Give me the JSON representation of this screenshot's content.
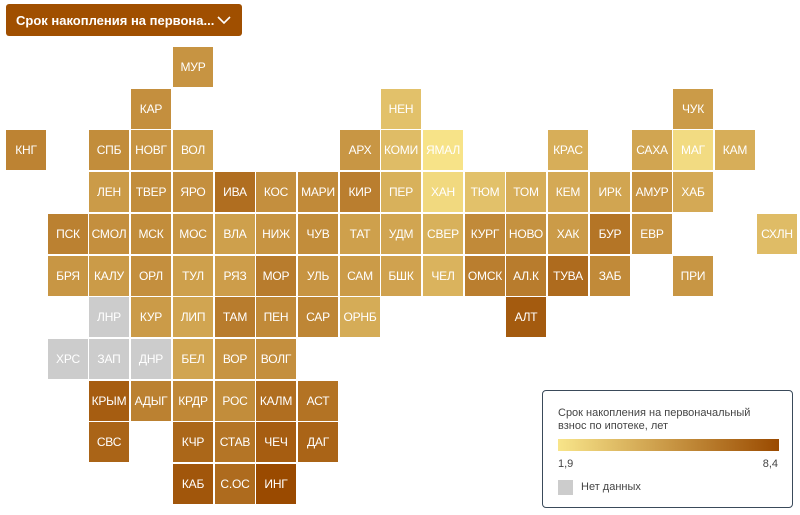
{
  "dropdown": {
    "label": "Срок накопления на первона..."
  },
  "legend": {
    "title": "Срок накопления на первоначальный взнос по ипотеке, лет",
    "min_label": "1,9",
    "max_label": "8,4",
    "no_data_label": "Нет данных",
    "color_low": "#f8e58a",
    "color_high": "#9a4a00",
    "color_no_data": "#cccccc"
  },
  "chart_data": {
    "type": "heatmap",
    "title": "Срок накопления на первоначальный взнос по ипотеке, лет",
    "value_range": [
      1.9,
      8.4
    ],
    "regions": [
      {
        "label": "МУР",
        "col": 4,
        "row": 0,
        "value": 5.3
      },
      {
        "label": "КАР",
        "col": 3,
        "row": 1,
        "value": 5.5
      },
      {
        "label": "НЕН",
        "col": 9,
        "row": 1,
        "value": 3.4
      },
      {
        "label": "ЧУК",
        "col": 16,
        "row": 1,
        "value": 5.0
      },
      {
        "label": "КНГ",
        "col": 0,
        "row": 2,
        "value": 6.0
      },
      {
        "label": "СПБ",
        "col": 2,
        "row": 2,
        "value": 5.6
      },
      {
        "label": "НОВГ",
        "col": 3,
        "row": 2,
        "value": 5.3
      },
      {
        "label": "ВОЛ",
        "col": 4,
        "row": 2,
        "value": 4.8
      },
      {
        "label": "АРХ",
        "col": 8,
        "row": 2,
        "value": 5.2
      },
      {
        "label": "КОМИ",
        "col": 9,
        "row": 2,
        "value": 3.6
      },
      {
        "label": "ЯМАЛ",
        "col": 10,
        "row": 2,
        "value": 2.0
      },
      {
        "label": "КРАС",
        "col": 13,
        "row": 2,
        "value": 4.2
      },
      {
        "label": "САХА",
        "col": 15,
        "row": 2,
        "value": 4.6
      },
      {
        "label": "МАГ",
        "col": 16,
        "row": 2,
        "value": 2.3
      },
      {
        "label": "КАМ",
        "col": 17,
        "row": 2,
        "value": 4.2
      },
      {
        "label": "ЛЕН",
        "col": 2,
        "row": 3,
        "value": 5.0
      },
      {
        "label": "ТВЕР",
        "col": 3,
        "row": 3,
        "value": 5.6
      },
      {
        "label": "ЯРО",
        "col": 4,
        "row": 3,
        "value": 5.5
      },
      {
        "label": "ИВА",
        "col": 5,
        "row": 3,
        "value": 6.9
      },
      {
        "label": "КОС",
        "col": 6,
        "row": 3,
        "value": 5.5
      },
      {
        "label": "МАРИ",
        "col": 7,
        "row": 3,
        "value": 5.7
      },
      {
        "label": "КИР",
        "col": 8,
        "row": 3,
        "value": 6.2
      },
      {
        "label": "ПЕР",
        "col": 9,
        "row": 3,
        "value": 4.1
      },
      {
        "label": "ХАН",
        "col": 10,
        "row": 3,
        "value": 2.4
      },
      {
        "label": "ТЮМ",
        "col": 11,
        "row": 3,
        "value": 3.4
      },
      {
        "label": "ТОМ",
        "col": 12,
        "row": 3,
        "value": 4.2
      },
      {
        "label": "КЕМ",
        "col": 13,
        "row": 3,
        "value": 4.4
      },
      {
        "label": "ИРК",
        "col": 14,
        "row": 3,
        "value": 4.6
      },
      {
        "label": "АМУР",
        "col": 15,
        "row": 3,
        "value": 5.3
      },
      {
        "label": "ХАБ",
        "col": 16,
        "row": 3,
        "value": 4.4
      },
      {
        "label": "ПСК",
        "col": 1,
        "row": 4,
        "value": 6.1
      },
      {
        "label": "СМОЛ",
        "col": 2,
        "row": 4,
        "value": 5.5
      },
      {
        "label": "МСК",
        "col": 3,
        "row": 4,
        "value": 5.6
      },
      {
        "label": "МОС",
        "col": 4,
        "row": 4,
        "value": 5.2
      },
      {
        "label": "ВЛА",
        "col": 5,
        "row": 4,
        "value": 4.8
      },
      {
        "label": "НИЖ",
        "col": 6,
        "row": 4,
        "value": 5.3
      },
      {
        "label": "ЧУВ",
        "col": 7,
        "row": 4,
        "value": 5.6
      },
      {
        "label": "ТАТ",
        "col": 8,
        "row": 4,
        "value": 4.8
      },
      {
        "label": "УДМ",
        "col": 9,
        "row": 4,
        "value": 4.6
      },
      {
        "label": "СВЕР",
        "col": 10,
        "row": 4,
        "value": 4.1
      },
      {
        "label": "КУРГ",
        "col": 11,
        "row": 4,
        "value": 5.7
      },
      {
        "label": "НОВО",
        "col": 12,
        "row": 4,
        "value": 5.4
      },
      {
        "label": "ХАК",
        "col": 13,
        "row": 4,
        "value": 5.0
      },
      {
        "label": "БУР",
        "col": 14,
        "row": 4,
        "value": 6.6
      },
      {
        "label": "ЕВР",
        "col": 15,
        "row": 4,
        "value": 5.3
      },
      {
        "label": "СХЛН",
        "col": 18,
        "row": 4,
        "value": 3.6
      },
      {
        "label": "БРЯ",
        "col": 1,
        "row": 5,
        "value": 5.2
      },
      {
        "label": "КАЛУ",
        "col": 2,
        "row": 5,
        "value": 5.0
      },
      {
        "label": "ОРЛ",
        "col": 3,
        "row": 5,
        "value": 5.5
      },
      {
        "label": "ТУЛ",
        "col": 4,
        "row": 5,
        "value": 4.8
      },
      {
        "label": "РЯЗ",
        "col": 5,
        "row": 5,
        "value": 4.9
      },
      {
        "label": "МОР",
        "col": 6,
        "row": 5,
        "value": 6.3
      },
      {
        "label": "УЛЬ",
        "col": 7,
        "row": 5,
        "value": 5.3
      },
      {
        "label": "САМ",
        "col": 8,
        "row": 5,
        "value": 5.0
      },
      {
        "label": "БШК",
        "col": 9,
        "row": 5,
        "value": 4.7
      },
      {
        "label": "ЧЕЛ",
        "col": 10,
        "row": 5,
        "value": 4.0
      },
      {
        "label": "ОМСК",
        "col": 11,
        "row": 5,
        "value": 6.2
      },
      {
        "label": "АЛ.К",
        "col": 12,
        "row": 5,
        "value": 6.3
      },
      {
        "label": "ТУВА",
        "col": 13,
        "row": 5,
        "value": 7.0
      },
      {
        "label": "ЗАБ",
        "col": 14,
        "row": 5,
        "value": 5.7
      },
      {
        "label": "ПРИ",
        "col": 16,
        "row": 5,
        "value": 5.2
      },
      {
        "label": "ЛНР",
        "col": 2,
        "row": 6,
        "value": null
      },
      {
        "label": "КУР",
        "col": 3,
        "row": 6,
        "value": 5.0
      },
      {
        "label": "ЛИП",
        "col": 4,
        "row": 6,
        "value": 4.6
      },
      {
        "label": "ТАМ",
        "col": 5,
        "row": 6,
        "value": 6.3
      },
      {
        "label": "ПЕН",
        "col": 6,
        "row": 6,
        "value": 5.7
      },
      {
        "label": "САР",
        "col": 7,
        "row": 6,
        "value": 5.9
      },
      {
        "label": "ОРНБ",
        "col": 8,
        "row": 6,
        "value": 4.3
      },
      {
        "label": "АЛТ",
        "col": 12,
        "row": 6,
        "value": 7.7
      },
      {
        "label": "ХРС",
        "col": 1,
        "row": 7,
        "value": null
      },
      {
        "label": "ЗАП",
        "col": 2,
        "row": 7,
        "value": null
      },
      {
        "label": "ДНР",
        "col": 3,
        "row": 7,
        "value": null
      },
      {
        "label": "БЕЛ",
        "col": 4,
        "row": 7,
        "value": 4.6
      },
      {
        "label": "ВОР",
        "col": 5,
        "row": 7,
        "value": 5.3
      },
      {
        "label": "ВОЛГ",
        "col": 6,
        "row": 7,
        "value": 5.5
      },
      {
        "label": "КРЫМ",
        "col": 2,
        "row": 8,
        "value": 7.6
      },
      {
        "label": "АДЫГ",
        "col": 3,
        "row": 8,
        "value": 6.1
      },
      {
        "label": "КРДР",
        "col": 4,
        "row": 8,
        "value": 5.8
      },
      {
        "label": "РОС",
        "col": 5,
        "row": 8,
        "value": 5.6
      },
      {
        "label": "КАЛМ",
        "col": 6,
        "row": 8,
        "value": 6.9
      },
      {
        "label": "АСТ",
        "col": 7,
        "row": 8,
        "value": 6.7
      },
      {
        "label": "СВС",
        "col": 2,
        "row": 9,
        "value": 7.3
      },
      {
        "label": "КЧР",
        "col": 4,
        "row": 9,
        "value": 7.2
      },
      {
        "label": "СТАВ",
        "col": 5,
        "row": 9,
        "value": 6.6
      },
      {
        "label": "ЧЕЧ",
        "col": 6,
        "row": 9,
        "value": 7.6
      },
      {
        "label": "ДАГ",
        "col": 7,
        "row": 9,
        "value": 7.3
      },
      {
        "label": "КАБ",
        "col": 4,
        "row": 10,
        "value": 7.9
      },
      {
        "label": "С.ОС",
        "col": 5,
        "row": 10,
        "value": 7.0
      },
      {
        "label": "ИНГ",
        "col": 6,
        "row": 10,
        "value": 8.4
      }
    ]
  }
}
